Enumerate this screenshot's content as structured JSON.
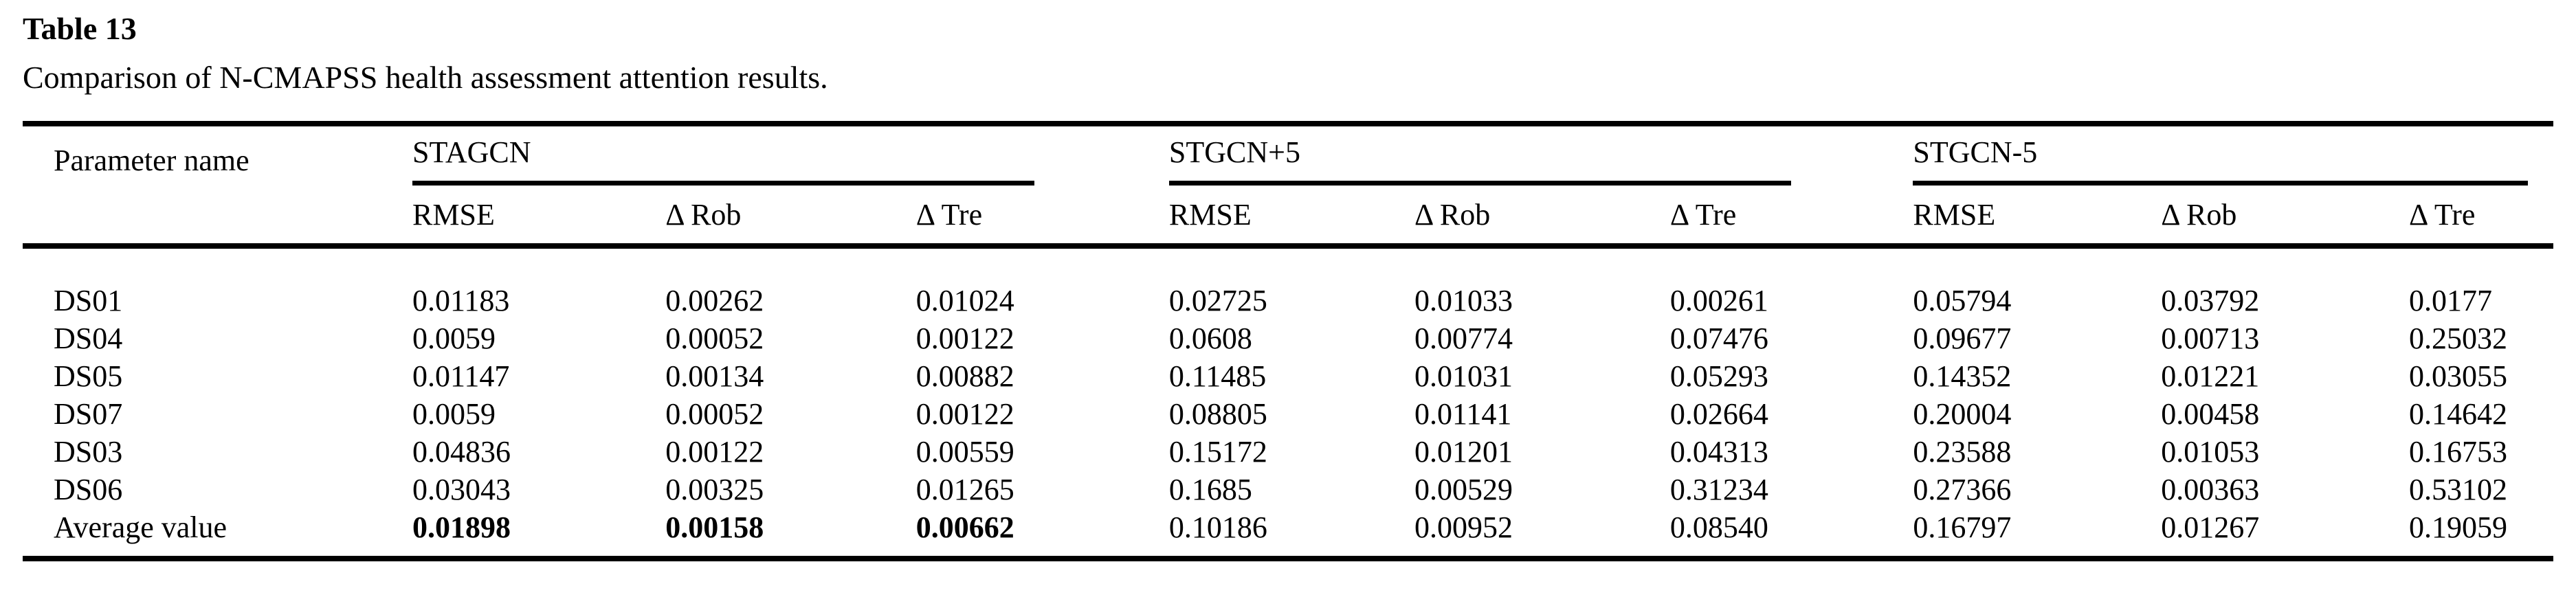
{
  "page": {
    "title": "Table 13",
    "caption": "Comparison of N-CMAPSS health assessment attention results."
  },
  "table": {
    "param_header": "Parameter name",
    "groups": [
      {
        "name": "STAGCN",
        "sub": [
          "RMSE",
          "Δ Rob",
          "Δ Tre"
        ]
      },
      {
        "name": "STGCN+5",
        "sub": [
          "RMSE",
          "Δ Rob",
          "Δ Tre"
        ]
      },
      {
        "name": "STGCN-5",
        "sub": [
          "RMSE",
          "Δ Rob",
          "Δ Tre"
        ]
      }
    ],
    "rows": [
      {
        "param": "DS01",
        "values": [
          "0.01183",
          "0.00262",
          "0.01024",
          "0.02725",
          "0.01033",
          "0.00261",
          "0.05794",
          "0.03792",
          "0.0177"
        ],
        "bold_cols": []
      },
      {
        "param": "DS04",
        "values": [
          "0.0059",
          "0.00052",
          "0.00122",
          "0.0608",
          "0.00774",
          "0.07476",
          "0.09677",
          "0.00713",
          "0.25032"
        ],
        "bold_cols": []
      },
      {
        "param": "DS05",
        "values": [
          "0.01147",
          "0.00134",
          "0.00882",
          "0.11485",
          "0.01031",
          "0.05293",
          "0.14352",
          "0.01221",
          "0.03055"
        ],
        "bold_cols": []
      },
      {
        "param": "DS07",
        "values": [
          "0.0059",
          "0.00052",
          "0.00122",
          "0.08805",
          "0.01141",
          "0.02664",
          "0.20004",
          "0.00458",
          "0.14642"
        ],
        "bold_cols": []
      },
      {
        "param": "DS03",
        "values": [
          "0.04836",
          "0.00122",
          "0.00559",
          "0.15172",
          "0.01201",
          "0.04313",
          "0.23588",
          "0.01053",
          "0.16753"
        ],
        "bold_cols": []
      },
      {
        "param": "DS06",
        "values": [
          "0.03043",
          "0.00325",
          "0.01265",
          "0.1685",
          "0.00529",
          "0.31234",
          "0.27366",
          "0.00363",
          "0.53102"
        ],
        "bold_cols": []
      },
      {
        "param": "Average value",
        "values": [
          "0.01898",
          "0.00158",
          "0.00662",
          "0.10186",
          "0.00952",
          "0.08540",
          "0.16797",
          "0.01267",
          "0.19059"
        ],
        "bold_cols": [
          0,
          1,
          2
        ]
      }
    ]
  }
}
